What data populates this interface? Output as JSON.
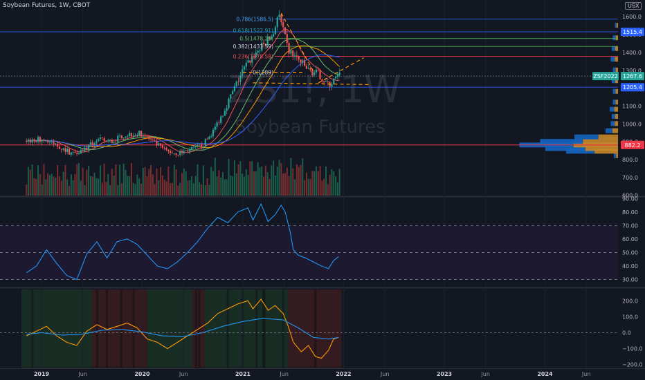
{
  "header": {
    "title": "Soybean Futures, 1W, CBOT",
    "currency": "USX"
  },
  "watermark": {
    "symbol": "ZS1!, 1W",
    "name": "Soybean Futures"
  },
  "colors": {
    "background": "#131722",
    "up": "#26a69a",
    "down": "#ef5350",
    "blue_line": "#2962ff",
    "red_line": "#f23645",
    "orange": "#ff9800",
    "rsi": "#2196f3",
    "volume_up": "#1b5e4a",
    "volume_down": "#7a2d2f"
  },
  "chart_data": [
    {
      "type": "candlestick",
      "title": "Soybean Futures, 1W, CBOT",
      "y_unit": "USX",
      "ylim": [
        590,
        1660
      ],
      "y_ticks": [
        600,
        700,
        800,
        900,
        1000,
        1100,
        1200,
        1300,
        1400,
        1500,
        1600
      ],
      "x_ticks": [
        "2019",
        "Jun",
        "2020",
        "Jun",
        "2021",
        "Jun",
        "2022",
        "Jun",
        "2023",
        "Jun",
        "2024",
        "Jun"
      ],
      "price_path": [
        [
          2018.85,
          905
        ],
        [
          2019.0,
          915
        ],
        [
          2019.15,
          880
        ],
        [
          2019.3,
          835
        ],
        [
          2019.45,
          865
        ],
        [
          2019.55,
          910
        ],
        [
          2019.7,
          900
        ],
        [
          2019.8,
          935
        ],
        [
          2019.9,
          945
        ],
        [
          2020.0,
          945
        ],
        [
          2020.1,
          900
        ],
        [
          2020.25,
          845
        ],
        [
          2020.35,
          835
        ],
        [
          2020.5,
          860
        ],
        [
          2020.6,
          880
        ],
        [
          2020.7,
          955
        ],
        [
          2020.8,
          1060
        ],
        [
          2020.9,
          1180
        ],
        [
          2021.0,
          1300
        ],
        [
          2021.1,
          1380
        ],
        [
          2021.2,
          1440
        ],
        [
          2021.3,
          1500
        ],
        [
          2021.35,
          1620
        ],
        [
          2021.4,
          1520
        ],
        [
          2021.45,
          1410
        ],
        [
          2021.55,
          1360
        ],
        [
          2021.65,
          1300
        ],
        [
          2021.75,
          1280
        ],
        [
          2021.85,
          1215
        ],
        [
          2021.95,
          1268
        ]
      ],
      "annotations": [
        {
          "label": "0.786(1586.5)",
          "value": 1586.5
        },
        {
          "label": "0.618(1522.91)",
          "value": 1522.91
        },
        {
          "label": "0.5(1478.25)",
          "value": 1478.25
        },
        {
          "label": "0.382(1433.59)",
          "value": 1433.59
        },
        {
          "label": "0.236(1378.58)",
          "value": 1378.58
        },
        {
          "label": "0(1289)",
          "value": 1289
        }
      ],
      "horizontal_lines": [
        {
          "value": 1586.5,
          "color": "#2962ff"
        },
        {
          "value": 1515.4,
          "color": "#2962ff"
        },
        {
          "value": 1478.25,
          "color": "#4caf50"
        },
        {
          "value": 1433.59,
          "color": "#4caf50"
        },
        {
          "value": 1378.58,
          "color": "#f23645"
        },
        {
          "value": 1205.4,
          "color": "#2962ff"
        },
        {
          "value": 882.2,
          "color": "#f23645"
        }
      ],
      "price_labels": [
        {
          "text": "1515.4",
          "value": 1515.4,
          "color": "#2962ff"
        },
        {
          "text": "ZSF2022",
          "value": 1267.6,
          "color": "#26a69a"
        },
        {
          "text": "1267.6",
          "value": 1267.6,
          "color": "#26a69a"
        },
        {
          "text": "1205.4",
          "value": 1205.4,
          "color": "#2962ff"
        },
        {
          "text": "882.2",
          "value": 882.2,
          "color": "#f23645"
        }
      ],
      "volume_profile": [
        {
          "price": 820,
          "value": 0.04
        },
        {
          "price": 845,
          "value": 0.5
        },
        {
          "price": 860,
          "value": 0.7
        },
        {
          "price": 880,
          "value": 0.95
        },
        {
          "price": 900,
          "value": 0.75
        },
        {
          "price": 925,
          "value": 0.42
        },
        {
          "price": 960,
          "value": 0.12
        },
        {
          "price": 1000,
          "value": 0.07
        },
        {
          "price": 1040,
          "value": 0.06
        },
        {
          "price": 1080,
          "value": 0.08
        },
        {
          "price": 1120,
          "value": 0.05
        },
        {
          "price": 1180,
          "value": 0.05
        },
        {
          "price": 1240,
          "value": 0.06
        },
        {
          "price": 1300,
          "value": 0.05
        },
        {
          "price": 1360,
          "value": 0.07
        },
        {
          "price": 1420,
          "value": 0.06
        },
        {
          "price": 1480,
          "value": 0.05
        },
        {
          "price": 1550,
          "value": 0.03
        }
      ]
    },
    {
      "type": "line",
      "title": "",
      "ylim": [
        20,
        92
      ],
      "y_ticks": [
        30.0,
        40.0,
        50.0,
        60.0,
        70.0,
        80.0,
        90.0
      ],
      "band": [
        30,
        70
      ],
      "midline": 50,
      "series": [
        {
          "values": [
            [
              2018.85,
              35
            ],
            [
              2018.95,
              40
            ],
            [
              2019.05,
              52
            ],
            [
              2019.15,
              42
            ],
            [
              2019.25,
              33
            ],
            [
              2019.35,
              30
            ],
            [
              2019.45,
              49
            ],
            [
              2019.55,
              58
            ],
            [
              2019.65,
              46
            ],
            [
              2019.75,
              58
            ],
            [
              2019.85,
              60
            ],
            [
              2019.95,
              56
            ],
            [
              2020.05,
              48
            ],
            [
              2020.15,
              40
            ],
            [
              2020.25,
              38
            ],
            [
              2020.35,
              43
            ],
            [
              2020.45,
              50
            ],
            [
              2020.55,
              58
            ],
            [
              2020.65,
              68
            ],
            [
              2020.75,
              76
            ],
            [
              2020.85,
              72
            ],
            [
              2020.95,
              80
            ],
            [
              2021.05,
              83
            ],
            [
              2021.1,
              74
            ],
            [
              2021.18,
              86
            ],
            [
              2021.25,
              73
            ],
            [
              2021.32,
              78
            ],
            [
              2021.38,
              85
            ],
            [
              2021.42,
              80
            ],
            [
              2021.47,
              65
            ],
            [
              2021.5,
              52
            ],
            [
              2021.55,
              48
            ],
            [
              2021.62,
              46
            ],
            [
              2021.7,
              43
            ],
            [
              2021.78,
              40
            ],
            [
              2021.85,
              38
            ],
            [
              2021.9,
              44
            ],
            [
              2021.95,
              47
            ]
          ]
        }
      ]
    },
    {
      "type": "line",
      "title": "",
      "ylim": [
        -250,
        260
      ],
      "y_ticks": [
        -200,
        -100,
        0,
        100,
        200
      ],
      "series": [
        {
          "color": "#ff9800",
          "values": [
            [
              2018.85,
              -20
            ],
            [
              2018.95,
              10
            ],
            [
              2019.05,
              40
            ],
            [
              2019.15,
              -20
            ],
            [
              2019.25,
              -60
            ],
            [
              2019.35,
              -80
            ],
            [
              2019.45,
              10
            ],
            [
              2019.55,
              50
            ],
            [
              2019.65,
              20
            ],
            [
              2019.75,
              40
            ],
            [
              2019.85,
              60
            ],
            [
              2019.95,
              30
            ],
            [
              2020.05,
              -40
            ],
            [
              2020.15,
              -60
            ],
            [
              2020.25,
              -100
            ],
            [
              2020.35,
              -60
            ],
            [
              2020.45,
              -20
            ],
            [
              2020.55,
              20
            ],
            [
              2020.65,
              60
            ],
            [
              2020.75,
              120
            ],
            [
              2020.85,
              150
            ],
            [
              2020.95,
              180
            ],
            [
              2021.05,
              200
            ],
            [
              2021.1,
              150
            ],
            [
              2021.18,
              210
            ],
            [
              2021.25,
              140
            ],
            [
              2021.32,
              170
            ],
            [
              2021.4,
              120
            ],
            [
              2021.45,
              40
            ],
            [
              2021.5,
              -60
            ],
            [
              2021.58,
              -120
            ],
            [
              2021.65,
              -80
            ],
            [
              2021.72,
              -150
            ],
            [
              2021.78,
              -160
            ],
            [
              2021.85,
              -110
            ],
            [
              2021.9,
              -40
            ],
            [
              2021.95,
              -30
            ]
          ]
        },
        {
          "color": "#2196f3",
          "values": [
            [
              2018.85,
              -10
            ],
            [
              2019.0,
              0
            ],
            [
              2019.2,
              -15
            ],
            [
              2019.4,
              -10
            ],
            [
              2019.6,
              15
            ],
            [
              2019.8,
              20
            ],
            [
              2020.0,
              5
            ],
            [
              2020.2,
              -20
            ],
            [
              2020.4,
              -25
            ],
            [
              2020.6,
              0
            ],
            [
              2020.8,
              40
            ],
            [
              2021.0,
              70
            ],
            [
              2021.2,
              90
            ],
            [
              2021.4,
              80
            ],
            [
              2021.55,
              30
            ],
            [
              2021.7,
              -30
            ],
            [
              2021.85,
              -40
            ],
            [
              2021.95,
              -30
            ]
          ]
        }
      ]
    }
  ]
}
